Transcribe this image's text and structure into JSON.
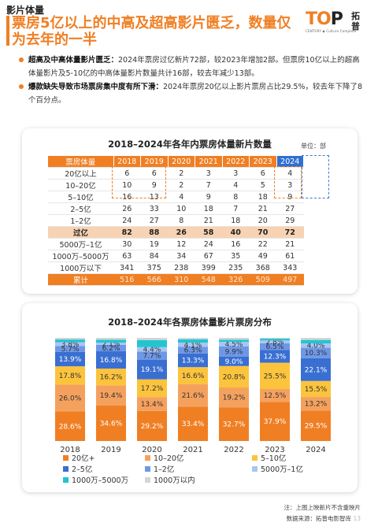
{
  "header": {
    "section": "影片体量",
    "title": "票房5亿以上的中高及超高影片匮乏，数量仅为去年的一半",
    "logo_text_orange": "T",
    "logo_text_dark": "P",
    "logo_mid": "O",
    "logo_cn": "拓普",
    "logo_sub": "CENTURY ◆ Culture Complete"
  },
  "bullets": [
    {
      "strong": "超高及中高体量影片匮乏：",
      "text": "2024年票房过亿新片72部，较2023年增加2部。但票房10亿以上的超高体量影片及5-10亿的中高体量影片数量共计16部，较去年减少13部。"
    },
    {
      "strong": "爆款缺失导致市场票房集中度有所下滑：",
      "text": "2024年票房20亿以上影片票房占比29.5%，较去年下降了8个百分点。"
    }
  ],
  "table": {
    "title": "2018–2024年各年内票房体量新片数量",
    "unit": "单位：部",
    "header_label": "票房体量",
    "years": [
      "2018",
      "2019",
      "2020",
      "2021",
      "2022",
      "2023",
      "2024"
    ],
    "rows": [
      {
        "label": "20亿以上",
        "values": [
          "6",
          "6",
          "2",
          "3",
          "3",
          "6",
          "4"
        ],
        "style": ""
      },
      {
        "label": "10–20亿",
        "values": [
          "10",
          "9",
          "2",
          "7",
          "4",
          "5",
          "3"
        ],
        "style": ""
      },
      {
        "label": "5–10亿",
        "values": [
          "16",
          "13",
          "4",
          "9",
          "8",
          "18",
          "9"
        ],
        "style": ""
      },
      {
        "label": "2–5亿",
        "values": [
          "26",
          "33",
          "10",
          "18",
          "7",
          "21",
          "27"
        ],
        "style": ""
      },
      {
        "label": "1–2亿",
        "values": [
          "24",
          "27",
          "8",
          "21",
          "18",
          "20",
          "29"
        ],
        "style": ""
      },
      {
        "label": "过亿",
        "values": [
          "82",
          "88",
          "26",
          "58",
          "40",
          "70",
          "72"
        ],
        "style": "sub"
      },
      {
        "label": "5000万–1亿",
        "values": [
          "30",
          "19",
          "12",
          "24",
          "16",
          "22",
          "21"
        ],
        "style": ""
      },
      {
        "label": "1000万–5000万",
        "values": [
          "63",
          "84",
          "34",
          "67",
          "35",
          "49",
          "61"
        ],
        "style": ""
      },
      {
        "label": "1000万以下",
        "values": [
          "341",
          "375",
          "238",
          "399",
          "235",
          "368",
          "343"
        ],
        "style": ""
      },
      {
        "label": "累计",
        "values": [
          "516",
          "566",
          "310",
          "548",
          "326",
          "509",
          "497"
        ],
        "style": "tot"
      }
    ]
  },
  "chart_data": {
    "type": "bar",
    "stacked": true,
    "normalized_percent": true,
    "title": "2018–2024年各票房体量影片票房分布",
    "categories": [
      "2018",
      "2019",
      "2020",
      "2021",
      "2022",
      "2023",
      "2024"
    ],
    "series": [
      {
        "name": "20亿+",
        "color": "#f07f23",
        "values": [
          28.6,
          34.6,
          29.2,
          33.4,
          32.7,
          37.9,
          29.5
        ]
      },
      {
        "name": "10–20亿",
        "color": "#f5a15e",
        "values": [
          26.0,
          19.4,
          13.4,
          21.6,
          19.2,
          12.5,
          13.2
        ]
      },
      {
        "name": "5–10亿",
        "color": "#fcc43d",
        "values": [
          17.8,
          16.2,
          17.2,
          16.6,
          20.8,
          25.5,
          15.5
        ]
      },
      {
        "name": "2–5亿",
        "color": "#3a6fd2",
        "values": [
          13.9,
          16.8,
          19.1,
          13.3,
          9.0,
          12.3,
          22.1
        ]
      },
      {
        "name": "1–2亿",
        "color": "#6e98e6",
        "values": [
          5.7,
          6.2,
          7.7,
          6.3,
          9.9,
          6.5,
          10.3
        ]
      },
      {
        "name": "5000万–1亿",
        "color": "#a8c6f5",
        "values": [
          3.8,
          2.1,
          4.4,
          4.1,
          4.5,
          2.8,
          4.0
        ]
      },
      {
        "name": "1000万–5000万",
        "color": "#22c5cf",
        "values": [
          2.6,
          2.9,
          6.9,
          3.3,
          2.1,
          1.7,
          3.4
        ]
      },
      {
        "name": "1000万以内",
        "color": "#d5d5d5",
        "values": [
          1.6,
          1.8,
          2.1,
          1.4,
          1.8,
          0.8,
          2.0
        ]
      }
    ],
    "value_labels_shown_for": [
      "20亿+",
      "10–20亿",
      "5–10亿",
      "2–5亿",
      "1–2亿",
      "5000万–1亿"
    ],
    "ylim": [
      0,
      100
    ],
    "legend_position": "bottom"
  },
  "footer": {
    "note": "注：上图上映新片不含重映片",
    "source": "数据来源：拓普电影智库",
    "page": "13"
  }
}
